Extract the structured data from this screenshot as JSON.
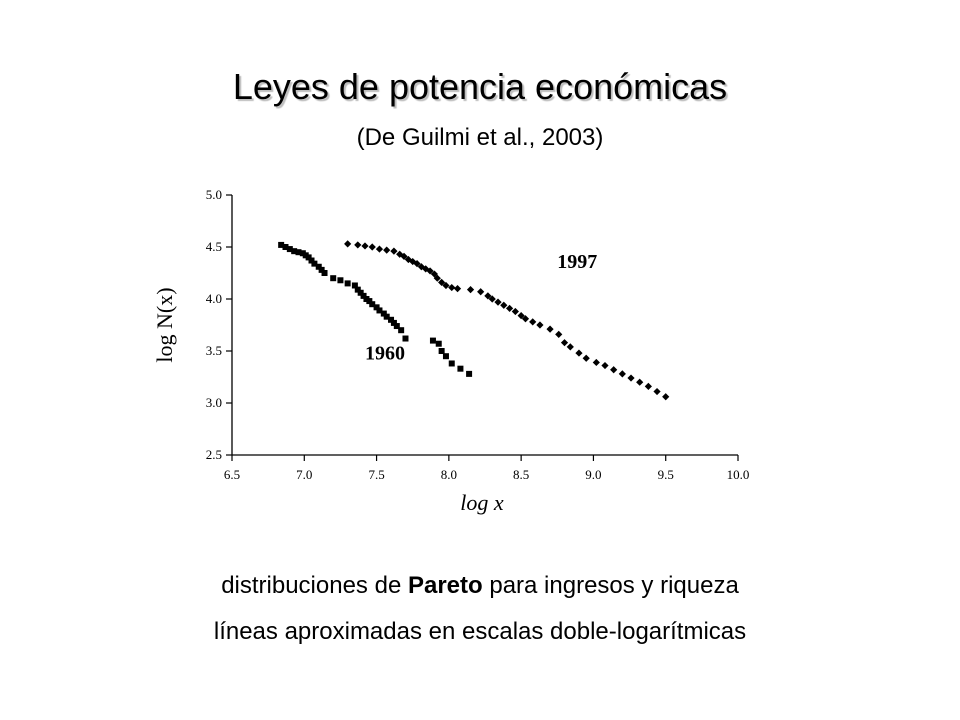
{
  "slide": {
    "title": "Leyes de potencia económicas",
    "subtitle": "(De Guilmi et al., 2003)",
    "caption_line1_before": "distribuciones de ",
    "caption_line1_bold": "Pareto",
    "caption_line1_after": " para ingresos y riqueza",
    "caption_line2": "líneas aproximadas en escalas doble-logarítmicas"
  },
  "chart_data": {
    "type": "scatter",
    "title": "",
    "xlabel": "log x",
    "ylabel": "log N(x)",
    "xlim": [
      6.5,
      10.0
    ],
    "ylim": [
      2.5,
      5.0
    ],
    "x_ticks": [
      "6.5",
      "7.0",
      "7.5",
      "8.0",
      "8.5",
      "9.0",
      "9.5",
      "10.0"
    ],
    "y_ticks": [
      "2.5",
      "3.0",
      "3.5",
      "4.0",
      "4.5",
      "5.0"
    ],
    "grid": false,
    "annotations": [
      {
        "text": "1997",
        "x": 8.75,
        "y": 4.3
      },
      {
        "text": "1960",
        "x": 7.42,
        "y": 3.42
      }
    ],
    "series": [
      {
        "name": "1960",
        "marker": "square",
        "color": "#000000",
        "x": [
          6.84,
          6.87,
          6.9,
          6.93,
          6.96,
          6.99,
          7.01,
          7.03,
          7.05,
          7.07,
          7.1,
          7.12,
          7.14,
          7.2,
          7.25,
          7.3,
          7.35,
          7.37,
          7.39,
          7.41,
          7.43,
          7.45,
          7.47,
          7.5,
          7.52,
          7.55,
          7.57,
          7.6,
          7.62,
          7.64,
          7.67,
          7.7,
          7.89,
          7.93,
          7.95,
          7.98,
          8.02,
          8.08,
          8.14
        ],
        "y": [
          4.52,
          4.5,
          4.48,
          4.46,
          4.45,
          4.44,
          4.42,
          4.4,
          4.37,
          4.34,
          4.31,
          4.28,
          4.25,
          4.2,
          4.18,
          4.15,
          4.13,
          4.09,
          4.06,
          4.03,
          4.0,
          3.98,
          3.95,
          3.92,
          3.89,
          3.86,
          3.83,
          3.8,
          3.77,
          3.74,
          3.7,
          3.62,
          3.6,
          3.57,
          3.5,
          3.45,
          3.38,
          3.33,
          3.28
        ]
      },
      {
        "name": "1997",
        "marker": "diamond",
        "color": "#000000",
        "x": [
          7.3,
          7.37,
          7.42,
          7.47,
          7.52,
          7.57,
          7.62,
          7.66,
          7.69,
          7.72,
          7.75,
          7.78,
          7.81,
          7.84,
          7.87,
          7.9,
          7.92,
          7.95,
          7.98,
          8.02,
          8.06,
          8.15,
          8.22,
          8.27,
          8.3,
          8.34,
          8.38,
          8.42,
          8.46,
          8.5,
          8.53,
          8.58,
          8.63,
          8.7,
          8.76,
          8.8,
          8.84,
          8.9,
          8.95,
          9.02,
          9.08,
          9.14,
          9.2,
          9.26,
          9.32,
          9.38,
          9.44,
          9.5
        ],
        "y": [
          4.53,
          4.52,
          4.51,
          4.5,
          4.48,
          4.47,
          4.46,
          4.43,
          4.41,
          4.38,
          4.36,
          4.34,
          4.31,
          4.29,
          4.27,
          4.24,
          4.2,
          4.16,
          4.13,
          4.11,
          4.1,
          4.09,
          4.07,
          4.03,
          4.0,
          3.97,
          3.94,
          3.91,
          3.88,
          3.84,
          3.81,
          3.78,
          3.75,
          3.71,
          3.66,
          3.58,
          3.54,
          3.48,
          3.43,
          3.39,
          3.36,
          3.32,
          3.28,
          3.24,
          3.2,
          3.16,
          3.11,
          3.06
        ]
      }
    ]
  }
}
